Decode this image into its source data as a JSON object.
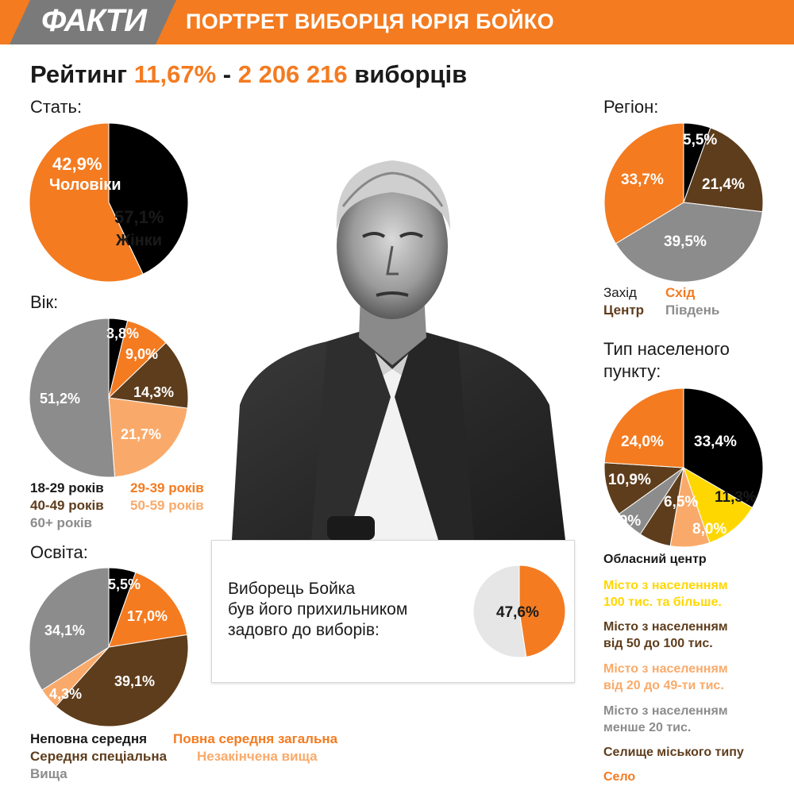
{
  "header": {
    "logo": "ФАКТИ",
    "title": "ПОРТРЕТ ВИБОРЦЯ ЮРІЯ БОЙКО"
  },
  "rating": {
    "label": "Рейтинг",
    "percent": "11,67%",
    "separator": "-",
    "voters": "2 206 216",
    "voters_word": "виборців"
  },
  "colors": {
    "orange": "#f47b20",
    "black": "#000000",
    "brown": "#5e3d1c",
    "gray": "#8c8c8c",
    "light_orange": "#f9aa6a",
    "yellow": "#ffd700",
    "light_gray": "#e6e6e6"
  },
  "gender": {
    "title": "Стать:",
    "men_value": "42,9%",
    "men_label": "Чоловіки",
    "women_value": "57,1%",
    "women_label": "Жінки"
  },
  "age": {
    "title": "Вік:",
    "labels": [
      "3,8%",
      "9,0%",
      "14,3%",
      "21,7%",
      "51,2%"
    ],
    "legend": [
      "18-29 років",
      "29-39 років",
      "40-49 років",
      "50-59 років",
      "60+ років"
    ]
  },
  "education": {
    "title": "Освіта:",
    "labels": [
      "5,5%",
      "17,0%",
      "39,1%",
      "4,3%",
      "34,1%"
    ],
    "legend": [
      "Неповна середня",
      "Повна середня загальна",
      "Середня спеціальна",
      "Незакінчена вища",
      "Вища"
    ]
  },
  "region": {
    "title": "Регіон:",
    "labels": [
      "5,5%",
      "21,4%",
      "39,5%",
      "33,7%"
    ],
    "legend": [
      "Захід",
      "Схід",
      "Центр",
      "Південь"
    ]
  },
  "settlement": {
    "title_line1": "Тип населеного",
    "title_line2": "пункту:",
    "labels": [
      "33,4%",
      "11,3%",
      "8,0%",
      "6,5%",
      "5,9%",
      "10,9%",
      "24,0%"
    ],
    "legend": [
      [
        "Обласний центр"
      ],
      [
        "Місто з населенням",
        "100 тис. та більше."
      ],
      [
        "Місто з населенням",
        "від 50 до 100 тис."
      ],
      [
        "Місто з населенням",
        "від 20 до 49-ти тис."
      ],
      [
        "Місто з населенням",
        "менше 20 тис."
      ],
      [
        "Селище міського типу"
      ],
      [
        "Село"
      ]
    ]
  },
  "callout": {
    "line1": "Виборець Бойка",
    "line2": "був його прихильником",
    "line3": "задовго до виборів:",
    "value": "47,6%"
  },
  "chart_data": [
    {
      "type": "pie",
      "title": "Стать:",
      "categories": [
        "Чоловіки",
        "Жінки"
      ],
      "values": [
        42.9,
        57.1
      ],
      "colors": [
        "#000000",
        "#f47b20"
      ]
    },
    {
      "type": "pie",
      "title": "Вік:",
      "categories": [
        "18-29 років",
        "29-39 років",
        "40-49 років",
        "50-59 років",
        "60+ років"
      ],
      "values": [
        3.8,
        9.0,
        14.3,
        21.7,
        51.2
      ],
      "colors": [
        "#000000",
        "#f47b20",
        "#5e3d1c",
        "#f9aa6a",
        "#8c8c8c"
      ]
    },
    {
      "type": "pie",
      "title": "Освіта:",
      "categories": [
        "Неповна середня",
        "Повна середня загальна",
        "Середня спеціальна",
        "Незакінчена вища",
        "Вища"
      ],
      "values": [
        5.5,
        17.0,
        39.1,
        4.3,
        34.1
      ],
      "colors": [
        "#000000",
        "#f47b20",
        "#5e3d1c",
        "#f9aa6a",
        "#8c8c8c"
      ]
    },
    {
      "type": "pie",
      "title": "Регіон:",
      "categories": [
        "Захід",
        "Центр",
        "Південь",
        "Схід"
      ],
      "values": [
        5.5,
        21.4,
        39.5,
        33.7
      ],
      "colors": [
        "#000000",
        "#5e3d1c",
        "#8c8c8c",
        "#f47b20"
      ]
    },
    {
      "type": "pie",
      "title": "Тип населеного пункту:",
      "categories": [
        "Обласний центр",
        "Місто з населенням 100 тис. та більше.",
        "Місто з населенням від 20 до 49-ти тис.",
        "Місто з населенням від 50 до 100 тис.",
        "Місто з населенням менше 20 тис.",
        "Селище міського типу",
        "Село"
      ],
      "values": [
        33.4,
        11.3,
        8.0,
        6.5,
        5.9,
        10.9,
        24.0
      ],
      "colors": [
        "#000000",
        "#ffd700",
        "#f9aa6a",
        "#5e3d1c",
        "#8c8c8c",
        "#5e3d1c",
        "#f47b20"
      ]
    },
    {
      "type": "pie",
      "title": "",
      "values": [
        47.6,
        52.4
      ],
      "colors": [
        "#f47b20",
        "#e6e6e6"
      ]
    }
  ]
}
